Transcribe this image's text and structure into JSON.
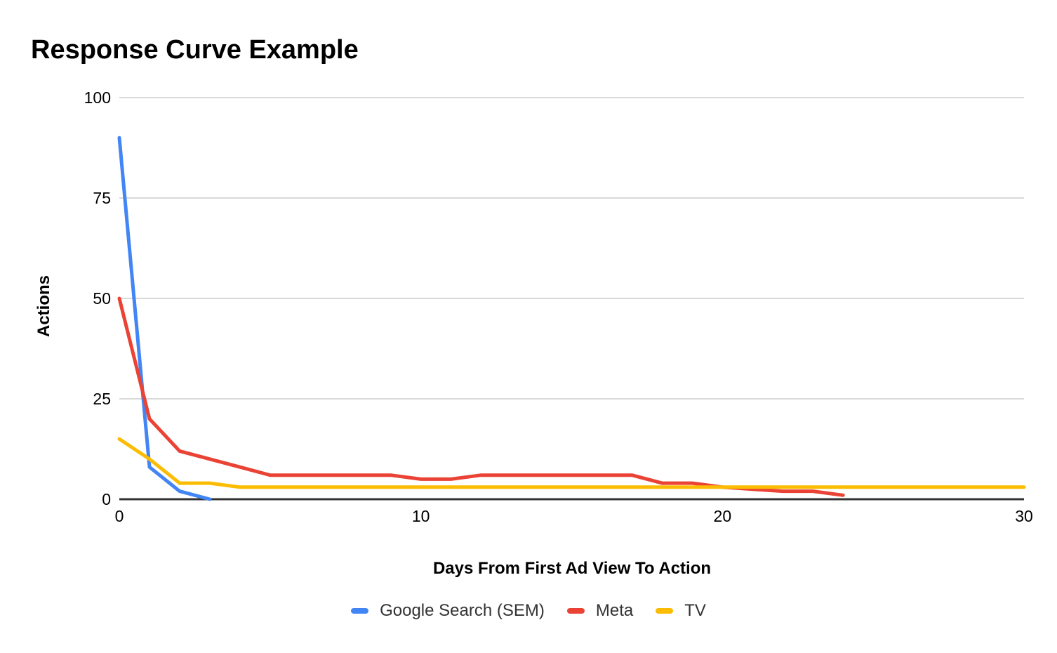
{
  "title": "Response Curve Example",
  "axes": {
    "x_title": "Days From First Ad View To Action",
    "y_title": "Actions"
  },
  "colors": {
    "background": "#ffffff",
    "grid": "#d9d9d9",
    "baseline": "#333333",
    "tick_text": "#000000",
    "legend_text": "#333333",
    "google_search_blue": "#4285F4",
    "meta_red": "#EA4335",
    "tv_yellow": "#FBBC04"
  },
  "chart_data": {
    "type": "line",
    "title": "Response Curve Example",
    "xlabel": "Days From First Ad View To Action",
    "ylabel": "Actions",
    "xlim": [
      0,
      30
    ],
    "ylim": [
      0,
      100
    ],
    "x_ticks": [
      0,
      10,
      20,
      30
    ],
    "y_ticks": [
      0,
      25,
      50,
      75,
      100
    ],
    "grid": true,
    "legend_position": "bottom",
    "series": [
      {
        "name": "Google Search (SEM)",
        "color": "#4285F4",
        "x": [
          0,
          1,
          2,
          3
        ],
        "values": [
          90,
          8,
          2,
          0
        ]
      },
      {
        "name": "Meta",
        "color": "#EA4335",
        "x": [
          0,
          1,
          2,
          3,
          4,
          5,
          6,
          7,
          8,
          9,
          10,
          11,
          12,
          13,
          14,
          15,
          16,
          17,
          18,
          19,
          20,
          21,
          22,
          23,
          24
        ],
        "values": [
          50,
          20,
          12,
          10,
          8,
          6,
          6,
          6,
          6,
          6,
          5,
          5,
          6,
          6,
          6,
          6,
          6,
          6,
          4,
          4,
          3,
          2.5,
          2,
          2,
          1
        ]
      },
      {
        "name": "TV",
        "color": "#FBBC04",
        "x": [
          0,
          1,
          2,
          3,
          4,
          5,
          6,
          7,
          8,
          9,
          10,
          11,
          12,
          13,
          14,
          15,
          16,
          17,
          18,
          19,
          20,
          21,
          22,
          23,
          24,
          25,
          26,
          27,
          28,
          29,
          30
        ],
        "values": [
          15,
          10,
          4,
          4,
          3,
          3,
          3,
          3,
          3,
          3,
          3,
          3,
          3,
          3,
          3,
          3,
          3,
          3,
          3,
          3,
          3,
          3,
          3,
          3,
          3,
          3,
          3,
          3,
          3,
          3,
          3
        ]
      }
    ]
  }
}
